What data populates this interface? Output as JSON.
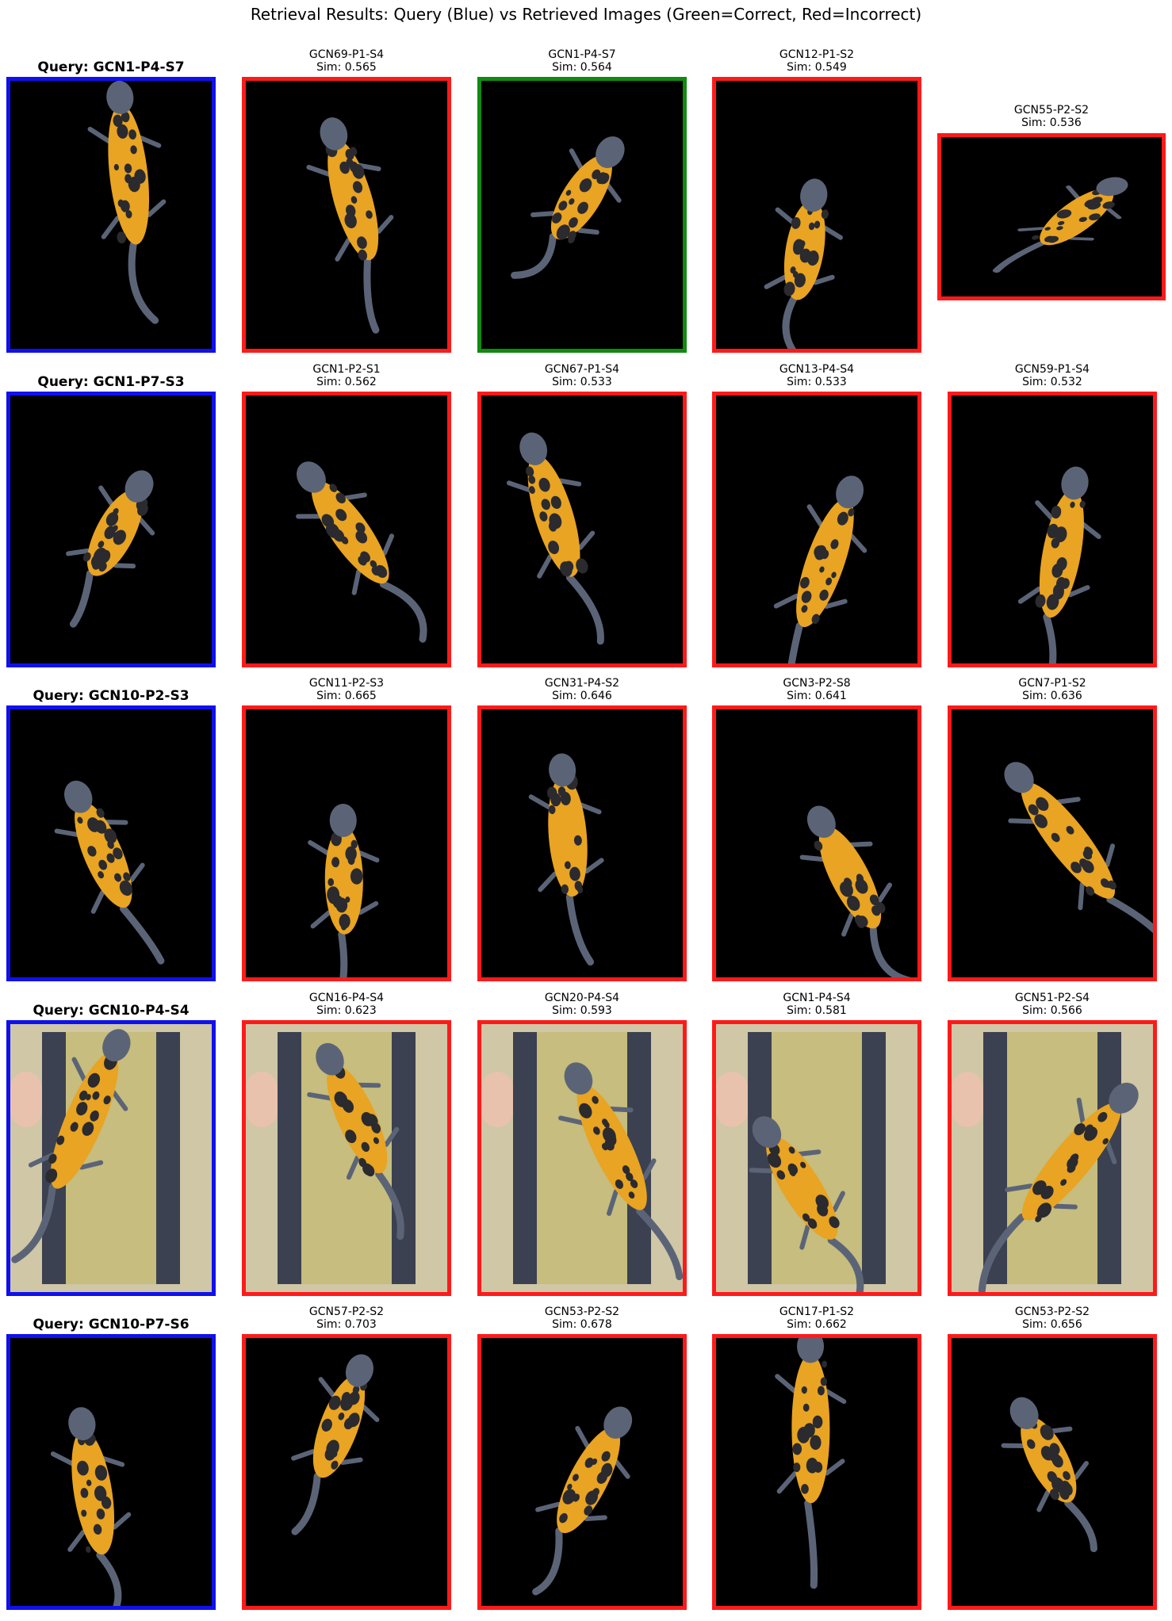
{
  "title": "Retrieval Results: Query (Blue) vs Retrieved Images (Green=Correct, Red=Incorrect)",
  "colors": {
    "query": "#1010ee",
    "correct": "#108a10",
    "incorrect": "#ff1a1a",
    "background": "#000000",
    "newt_orange": "#e8a422",
    "newt_dark": "#2b2a2e",
    "newt_grey": "#5b6477"
  },
  "rows": [
    {
      "query": {
        "label": "Query: GCN1-P4-S7"
      },
      "results": [
        {
          "name": "GCN69-P1-S4",
          "sim": "Sim: 0.565",
          "status": "incorrect"
        },
        {
          "name": "GCN1-P4-S7",
          "sim": "Sim: 0.564",
          "status": "correct"
        },
        {
          "name": "GCN12-P1-S2",
          "sim": "Sim: 0.549",
          "status": "incorrect"
        },
        {
          "name": "GCN55-P2-S2",
          "sim": "Sim: 0.536",
          "status": "incorrect"
        }
      ]
    },
    {
      "query": {
        "label": "Query: GCN1-P7-S3"
      },
      "results": [
        {
          "name": "GCN1-P2-S1",
          "sim": "Sim: 0.562",
          "status": "incorrect"
        },
        {
          "name": "GCN67-P1-S4",
          "sim": "Sim: 0.533",
          "status": "incorrect"
        },
        {
          "name": "GCN13-P4-S4",
          "sim": "Sim: 0.533",
          "status": "incorrect"
        },
        {
          "name": "GCN59-P1-S4",
          "sim": "Sim: 0.532",
          "status": "incorrect"
        }
      ]
    },
    {
      "query": {
        "label": "Query: GCN10-P2-S3"
      },
      "results": [
        {
          "name": "GCN11-P2-S3",
          "sim": "Sim: 0.665",
          "status": "incorrect"
        },
        {
          "name": "GCN31-P4-S2",
          "sim": "Sim: 0.646",
          "status": "incorrect"
        },
        {
          "name": "GCN3-P2-S8",
          "sim": "Sim: 0.641",
          "status": "incorrect"
        },
        {
          "name": "GCN7-P1-S2",
          "sim": "Sim: 0.636",
          "status": "incorrect"
        }
      ]
    },
    {
      "query": {
        "label": "Query: GCN10-P4-S4"
      },
      "results": [
        {
          "name": "GCN16-P4-S4",
          "sim": "Sim: 0.623",
          "status": "incorrect"
        },
        {
          "name": "GCN20-P4-S4",
          "sim": "Sim: 0.593",
          "status": "incorrect"
        },
        {
          "name": "GCN1-P4-S4",
          "sim": "Sim: 0.581",
          "status": "incorrect"
        },
        {
          "name": "GCN51-P2-S4",
          "sim": "Sim: 0.566",
          "status": "incorrect"
        }
      ]
    },
    {
      "query": {
        "label": "Query: GCN10-P7-S6"
      },
      "results": [
        {
          "name": "GCN57-P2-S2",
          "sim": "Sim: 0.703",
          "status": "incorrect"
        },
        {
          "name": "GCN53-P2-S2",
          "sim": "Sim: 0.678",
          "status": "incorrect"
        },
        {
          "name": "GCN17-P1-S2",
          "sim": "Sim: 0.662",
          "status": "incorrect"
        },
        {
          "name": "GCN53-P2-S2",
          "sim": "Sim: 0.656",
          "status": "incorrect"
        }
      ]
    }
  ]
}
